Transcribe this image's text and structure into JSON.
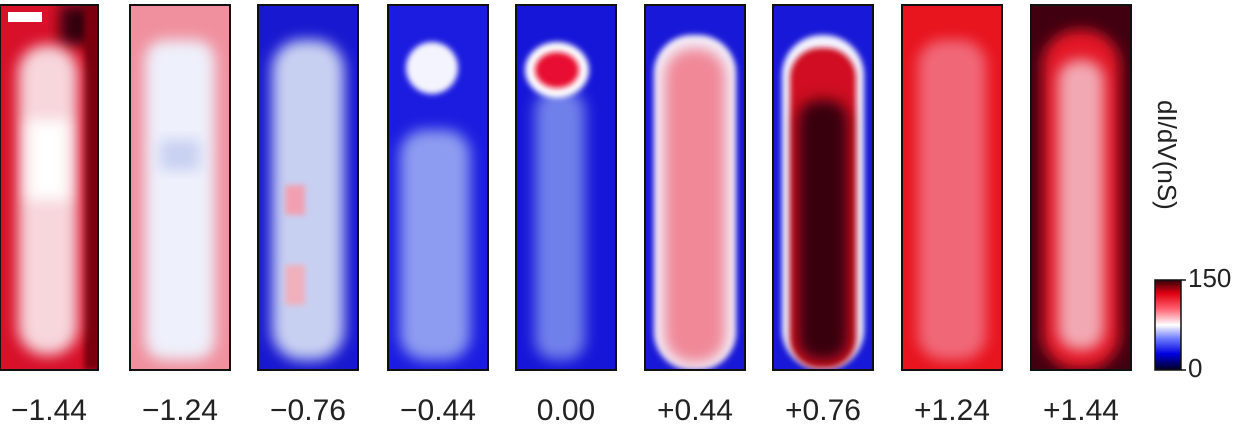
{
  "panels": [
    {
      "label": "−1.44"
    },
    {
      "label": "−1.24"
    },
    {
      "label": "−0.76"
    },
    {
      "label": "−0.44"
    },
    {
      "label": "0.00"
    },
    {
      "label": "+0.44"
    },
    {
      "label": "+0.76"
    },
    {
      "label": "+1.24"
    },
    {
      "label": "+1.44"
    }
  ],
  "colorbar": {
    "title": "dI/dV(nS)",
    "ticks": [
      0,
      150
    ]
  }
}
